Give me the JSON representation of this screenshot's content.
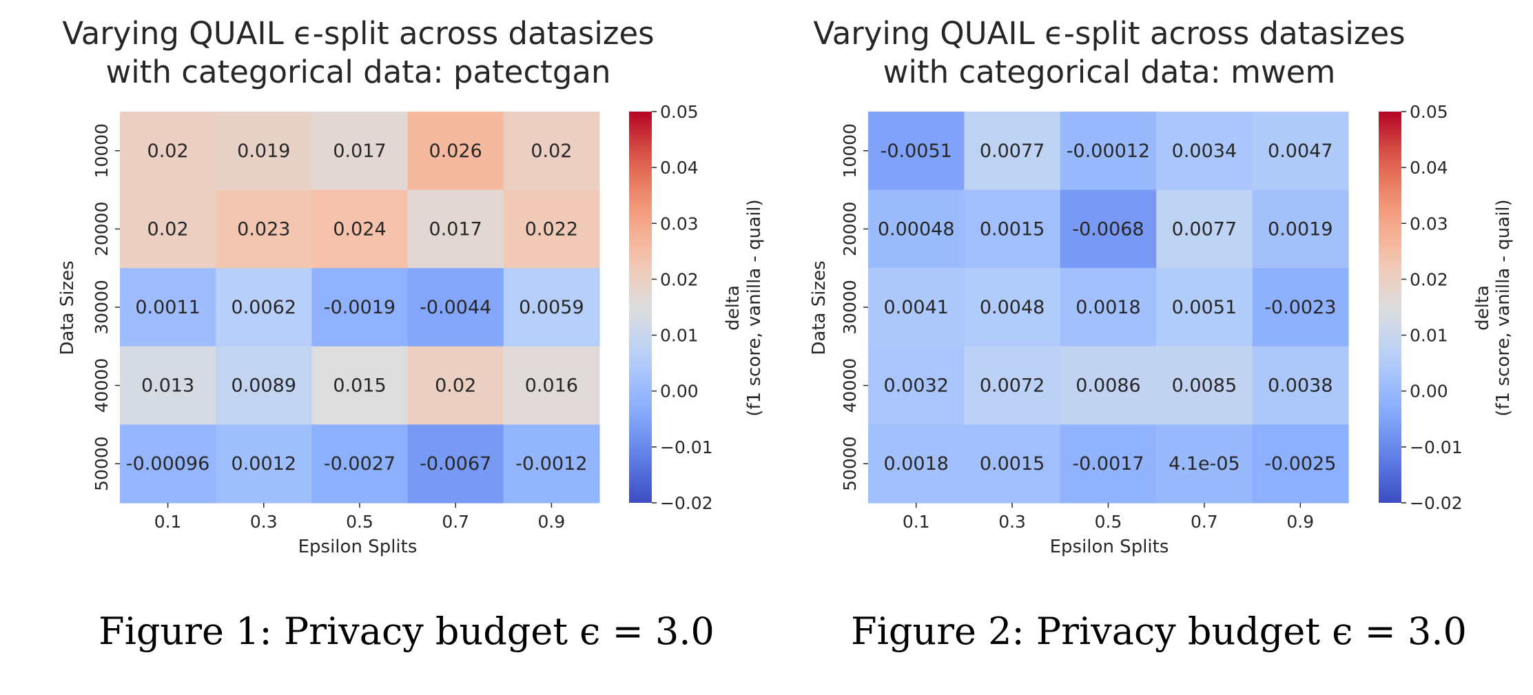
{
  "chart_data": [
    {
      "type": "heatmap",
      "title": [
        "Varying QUAIL ϵ-split across datasizes",
        "with categorical data: patectgan"
      ],
      "xlabel": "Epsilon Splits",
      "ylabel": "Data Sizes",
      "x_categories": [
        "0.1",
        "0.3",
        "0.5",
        "0.7",
        "0.9"
      ],
      "y_categories": [
        "10000",
        "20000",
        "30000",
        "40000",
        "50000"
      ],
      "values": [
        [
          0.02,
          0.019,
          0.017,
          0.026,
          0.02
        ],
        [
          0.02,
          0.023,
          0.024,
          0.017,
          0.022
        ],
        [
          0.0011,
          0.0062,
          -0.0019,
          -0.0044,
          0.0059
        ],
        [
          0.013,
          0.0089,
          0.015,
          0.02,
          0.016
        ],
        [
          -0.00096,
          0.0012,
          -0.0027,
          -0.0067,
          -0.0012
        ]
      ],
      "annotations": [
        [
          "0.02",
          "0.019",
          "0.017",
          "0.026",
          "0.02"
        ],
        [
          "0.02",
          "0.023",
          "0.024",
          "0.017",
          "0.022"
        ],
        [
          "0.0011",
          "0.0062",
          "-0.0019",
          "-0.0044",
          "0.0059"
        ],
        [
          "0.013",
          "0.0089",
          "0.015",
          "0.02",
          "0.016"
        ],
        [
          "-0.00096",
          "0.0012",
          "-0.0027",
          "-0.0067",
          "-0.0012"
        ]
      ],
      "colormap": "coolwarm",
      "vmin": -0.02,
      "vmax": 0.05,
      "colorbar_ticks": [
        "0.05",
        "0.04",
        "0.03",
        "0.02",
        "0.01",
        "0.00",
        "−0.01",
        "−0.02"
      ],
      "colorbar_tick_values": [
        0.05,
        0.04,
        0.03,
        0.02,
        0.01,
        0.0,
        -0.01,
        -0.02
      ],
      "colorbar_label": [
        "delta",
        "(f1 score, vanilla - quail)"
      ],
      "caption": "Figure 1: Privacy budget ϵ = 3.0"
    },
    {
      "type": "heatmap",
      "title": [
        "Varying QUAIL ϵ-split across datasizes",
        "with categorical data: mwem"
      ],
      "xlabel": "Epsilon Splits",
      "ylabel": "Data Sizes",
      "x_categories": [
        "0.1",
        "0.3",
        "0.5",
        "0.7",
        "0.9"
      ],
      "y_categories": [
        "10000",
        "20000",
        "30000",
        "40000",
        "50000"
      ],
      "values": [
        [
          -0.0051,
          0.0077,
          -0.00012,
          0.0034,
          0.0047
        ],
        [
          0.00048,
          0.0015,
          -0.0068,
          0.0077,
          0.0019
        ],
        [
          0.0041,
          0.0048,
          0.0018,
          0.0051,
          -0.0023
        ],
        [
          0.0032,
          0.0072,
          0.0086,
          0.0085,
          0.0038
        ],
        [
          0.0018,
          0.0015,
          -0.0017,
          4.1e-05,
          -0.0025
        ]
      ],
      "annotations": [
        [
          "-0.0051",
          "0.0077",
          "-0.00012",
          "0.0034",
          "0.0047"
        ],
        [
          "0.00048",
          "0.0015",
          "-0.0068",
          "0.0077",
          "0.0019"
        ],
        [
          "0.0041",
          "0.0048",
          "0.0018",
          "0.0051",
          "-0.0023"
        ],
        [
          "0.0032",
          "0.0072",
          "0.0086",
          "0.0085",
          "0.0038"
        ],
        [
          "0.0018",
          "0.0015",
          "-0.0017",
          "4.1e-05",
          "-0.0025"
        ]
      ],
      "colormap": "coolwarm",
      "vmin": -0.02,
      "vmax": 0.05,
      "colorbar_ticks": [
        "0.05",
        "0.04",
        "0.03",
        "0.02",
        "0.01",
        "0.00",
        "−0.01",
        "−0.02"
      ],
      "colorbar_tick_values": [
        0.05,
        0.04,
        0.03,
        0.02,
        0.01,
        0.0,
        -0.01,
        -0.02
      ],
      "colorbar_label": [
        "delta",
        "(f1 score, vanilla - quail)"
      ],
      "caption": "Figure 2: Privacy budget ϵ = 3.0"
    }
  ]
}
